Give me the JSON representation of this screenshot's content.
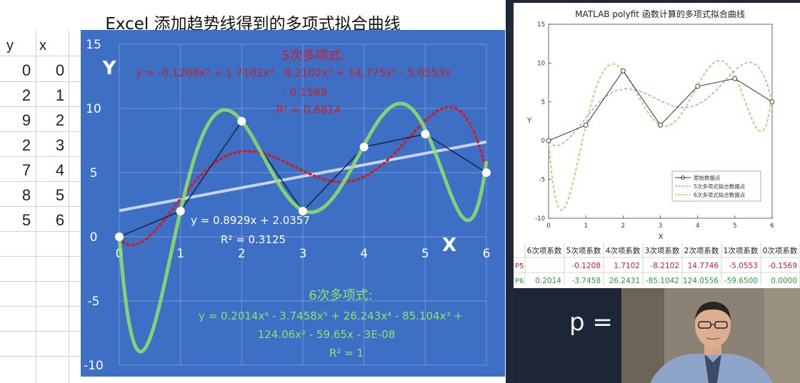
{
  "left": {
    "title": "Excel  添加趋势线得到的多项式拟合曲线",
    "sheet": {
      "headers": [
        "y",
        "x"
      ],
      "rows": [
        [
          "0",
          "0"
        ],
        [
          "2",
          "1"
        ],
        [
          "9",
          "2"
        ],
        [
          "2",
          "3"
        ],
        [
          "7",
          "4"
        ],
        [
          "8",
          "5"
        ],
        [
          "5",
          "6"
        ]
      ]
    },
    "chart": {
      "y_axis_letter": "Y",
      "x_axis_letter": "X",
      "poly5": {
        "title": "5次多项式:",
        "eq_line1": "y = -0.1208x⁵ + 1.7102x⁴ - 8.2102x³ + 14.775x² - 5.0553x",
        "eq_line2": "- 0.1569",
        "r2": "R² = 0.6814",
        "color": "#cc1f2a"
      },
      "linear": {
        "eq": "y = 0.8929x + 2.0357",
        "r2": "R² = 0.3125",
        "color": "#c9d2f0"
      },
      "poly6": {
        "title": "6次多项式:",
        "eq_line1": "y = 0.2014x⁶ - 3.7458x⁵ + 26.243x⁴ - 85.104x³ +",
        "eq_line2": "124.06x² - 59.65x - 3E-08",
        "r2": "R² = 1",
        "color": "#8fe36a"
      }
    }
  },
  "right": {
    "title": "MATLAB polyfit 函数计算的多项式拟合曲线",
    "ylabel": "Y",
    "xlabel": "X",
    "legend": [
      "原始数据点",
      "5次多项式拟合数据点",
      "6次多项式拟合数据点"
    ],
    "coef_table": {
      "headers": [
        "6次项系数",
        "5次项系数",
        "4次项系数",
        "3次项系数",
        "2次项系数",
        "1次项系数",
        "0次项系数"
      ],
      "rows": [
        {
          "label": "P5",
          "values": [
            "",
            "-0.1208",
            "1.7102",
            "-8.2102",
            "14.7746",
            "-5.0553",
            "-0.1569"
          ],
          "color": "#d81b3a"
        },
        {
          "label": "P6",
          "values": [
            "0.2014",
            "-3.7458",
            "26.2431",
            "-85.1042",
            "124.0556",
            "-59.6500",
            "0.0000"
          ],
          "color": "#2e9d3a"
        }
      ]
    }
  },
  "overlay_text": "p  =",
  "chart_data": [
    {
      "type": "scatter",
      "title": "Excel  添加趋势线得到的多项式拟合曲线",
      "xlabel": "X",
      "ylabel": "Y",
      "xlim": [
        0,
        6
      ],
      "ylim": [
        -10,
        15
      ],
      "xticks": [
        0,
        1,
        2,
        3,
        4,
        5,
        6
      ],
      "yticks": [
        -10,
        -5,
        0,
        5,
        10,
        15
      ],
      "x": [
        0,
        1,
        2,
        3,
        4,
        5,
        6
      ],
      "y": [
        0,
        2,
        9,
        2,
        7,
        8,
        5
      ],
      "trendlines": [
        {
          "name": "6次多项式",
          "coefficients_high_to_low": [
            0.2014,
            -3.7458,
            26.243,
            -85.104,
            124.06,
            -59.65,
            0
          ]
        },
        {
          "name": "5次多项式",
          "coefficients_high_to_low": [
            -0.1208,
            1.7102,
            -8.2102,
            14.775,
            -5.0553,
            -0.1569
          ]
        },
        {
          "name": "linear",
          "coefficients_high_to_low": [
            0.8929,
            2.0357
          ]
        }
      ]
    },
    {
      "type": "line",
      "title": "MATLAB polyfit 函数计算的多项式拟合曲线",
      "xlabel": "X",
      "ylabel": "Y",
      "xlim": [
        0,
        6
      ],
      "ylim": [
        -10,
        15
      ],
      "xticks": [
        0,
        1,
        2,
        3,
        4,
        5,
        6
      ],
      "yticks": [
        -10,
        -5,
        0,
        5,
        10,
        15
      ],
      "x": [
        0,
        1,
        2,
        3,
        4,
        5,
        6
      ],
      "series": [
        {
          "name": "原始数据点",
          "values": [
            0,
            2,
            9,
            2,
            7,
            8,
            5
          ]
        },
        {
          "name": "5次多项式拟合数据点",
          "coefficients_high_to_low": [
            -0.1208,
            1.7102,
            -8.2102,
            14.7746,
            -5.0553,
            -0.1569
          ]
        },
        {
          "name": "6次多项式拟合数据点",
          "coefficients_high_to_low": [
            0.2014,
            -3.7458,
            26.2431,
            -85.1042,
            124.0556,
            -59.65,
            0
          ]
        }
      ],
      "legend": "bottom-right"
    }
  ]
}
